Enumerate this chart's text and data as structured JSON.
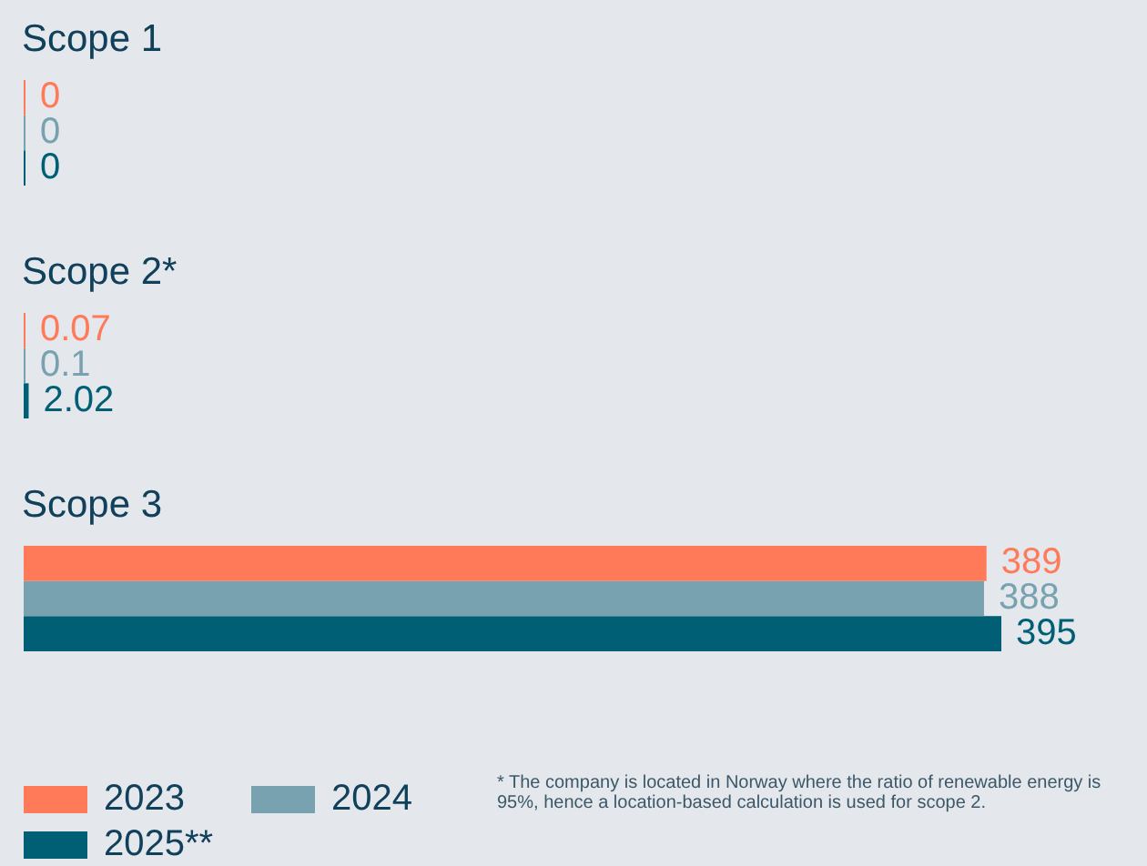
{
  "chart_data": {
    "type": "bar",
    "orientation": "horizontal",
    "categories": [
      "Scope 1",
      "Scope 2*",
      "Scope 3"
    ],
    "series": [
      {
        "name": "2023",
        "color": "#ff7a59",
        "values": [
          0,
          0.07,
          389
        ]
      },
      {
        "name": "2024",
        "color": "#78a2b0",
        "values": [
          0,
          0.1,
          388
        ]
      },
      {
        "name": "2025**",
        "color": "#015f75",
        "values": [
          0,
          2.02,
          395
        ]
      }
    ],
    "data_labels": true,
    "tick_labels": "y",
    "legend": "bottom",
    "annotations": [
      "* The company is located in Norway where the ratio of renewable energy is 95%, hence a location-based calculation is used for scope 2."
    ]
  }
}
